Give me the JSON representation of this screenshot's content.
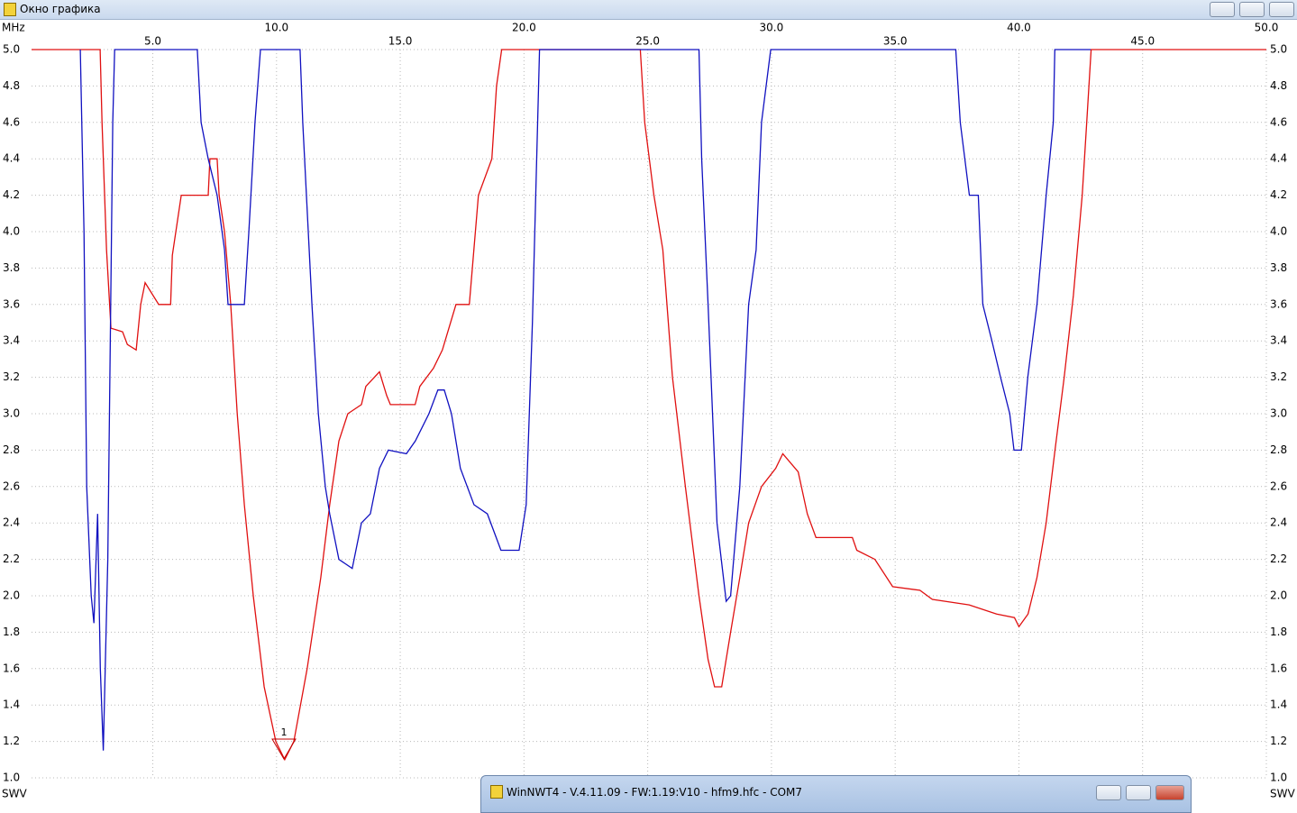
{
  "window": {
    "title": "Окно графика"
  },
  "chart_data": {
    "type": "line",
    "x_unit": "MHz",
    "y_unit": "SWV",
    "marker_label": "1",
    "xlim": [
      0.1,
      50
    ],
    "ylim": [
      1,
      5
    ],
    "grid": true,
    "xticks": [
      {
        "value": 5,
        "label": "5.0"
      },
      {
        "value": 10,
        "label": "10.0"
      },
      {
        "value": 15,
        "label": "15.0"
      },
      {
        "value": 20,
        "label": "20.0"
      },
      {
        "value": 25,
        "label": "25.0"
      },
      {
        "value": 30,
        "label": "30.0"
      },
      {
        "value": 35,
        "label": "35.0"
      },
      {
        "value": 40,
        "label": "40.0"
      },
      {
        "value": 45,
        "label": "45.0"
      },
      {
        "value": 50,
        "label": "50.0"
      }
    ],
    "yticks": [
      {
        "value": 1,
        "label": "1.0"
      },
      1.2,
      1.4,
      1.6,
      1.8,
      {
        "value": 2,
        "label": "2.0"
      },
      2.2,
      2.4,
      2.6,
      2.8,
      {
        "value": 3,
        "label": "3.0"
      },
      3.2,
      3.4,
      3.6,
      3.8,
      {
        "value": 4,
        "label": "4.0"
      },
      4.2,
      4.4,
      4.6,
      4.8,
      {
        "value": 5,
        "label": "5.0"
      }
    ],
    "series": [
      {
        "color": "#e01010",
        "x": [
          0.1,
          2.87,
          2.95,
          3.13,
          3.31,
          3.78,
          3.97,
          4.33,
          4.51,
          4.69,
          5.24,
          5.72,
          5.79,
          6.15,
          7.24,
          7.31,
          7.6,
          7.68,
          7.9,
          8.15,
          8.41,
          8.7,
          9.06,
          9.5,
          9.97,
          10.33,
          10.7,
          11.24,
          11.79,
          12.15,
          12.52,
          12.88,
          13.43,
          13.61,
          14.16,
          14.45,
          14.6,
          15.6,
          15.79,
          16.34,
          16.7,
          17.25,
          17.79,
          18.16,
          18.7,
          18.89,
          19.1,
          24.7,
          24.88,
          25.25,
          25.61,
          26.0,
          26.52,
          27.07,
          27.44,
          27.7,
          27.99,
          28.35,
          28.72,
          29.08,
          29.6,
          30.17,
          30.46,
          31.08,
          31.45,
          31.8,
          33.27,
          33.45,
          34.18,
          34.9,
          36.0,
          36.5,
          37.99,
          39.1,
          39.82,
          40.0,
          40.37,
          40.73,
          41.1,
          41.46,
          41.83,
          42.2,
          42.56,
          42.74,
          42.92,
          50
        ],
        "values": [
          5,
          5,
          4.6,
          3.9,
          3.47,
          3.45,
          3.38,
          3.35,
          3.6,
          3.72,
          3.6,
          3.6,
          3.87,
          4.2,
          4.2,
          4.4,
          4.4,
          4.2,
          4.0,
          3.6,
          3.0,
          2.5,
          2.0,
          1.5,
          1.2,
          1.1,
          1.2,
          1.6,
          2.1,
          2.5,
          2.85,
          3.0,
          3.05,
          3.15,
          3.23,
          3.1,
          3.05,
          3.05,
          3.15,
          3.25,
          3.35,
          3.6,
          3.6,
          4.2,
          4.4,
          4.8,
          5,
          5,
          4.6,
          4.2,
          3.9,
          3.2,
          2.6,
          2.0,
          1.65,
          1.5,
          1.5,
          1.8,
          2.1,
          2.4,
          2.6,
          2.7,
          2.78,
          2.68,
          2.45,
          2.32,
          2.32,
          2.25,
          2.2,
          2.05,
          2.03,
          1.98,
          1.95,
          1.9,
          1.88,
          1.83,
          1.9,
          2.1,
          2.4,
          2.8,
          3.2,
          3.65,
          4.2,
          4.6,
          5,
          5
        ]
      },
      {
        "color": "#1010c0",
        "x": [
          2.07,
          2.22,
          2.33,
          2.51,
          2.62,
          2.77,
          2.88,
          3.0,
          3.18,
          3.29,
          3.38,
          3.46,
          6.8,
          6.95,
          7.24,
          7.6,
          7.9,
          8.04,
          8.7,
          8.88,
          9.13,
          9.35,
          10.95,
          11.06,
          11.43,
          11.69,
          11.97,
          12.15,
          12.52,
          13.06,
          13.43,
          13.79,
          14.16,
          14.52,
          15.25,
          15.61,
          16.16,
          16.52,
          16.78,
          17.07,
          17.43,
          17.98,
          18.52,
          19.07,
          19.8,
          20.09,
          20.34,
          20.63,
          27.07,
          27.18,
          27.44,
          27.8,
          28.17,
          28.35,
          28.72,
          29.08,
          29.38,
          29.6,
          29.97,
          37.45,
          37.63,
          38.0,
          38.36,
          38.54,
          38.91,
          39.26,
          39.63,
          39.8,
          40.1,
          40.36,
          40.73,
          41.1,
          41.39,
          41.45,
          42.9
        ],
        "values": [
          5,
          4.0,
          2.6,
          2.0,
          1.85,
          2.45,
          1.6,
          1.15,
          2.2,
          3.5,
          4.6,
          5,
          5,
          4.6,
          4.4,
          4.2,
          3.9,
          3.6,
          3.6,
          4.0,
          4.6,
          5,
          5,
          4.6,
          3.6,
          3.0,
          2.6,
          2.45,
          2.2,
          2.15,
          2.4,
          2.45,
          2.7,
          2.8,
          2.78,
          2.85,
          3.0,
          3.13,
          3.13,
          3.0,
          2.7,
          2.5,
          2.45,
          2.25,
          2.25,
          2.5,
          3.5,
          5,
          5,
          4.4,
          3.6,
          2.4,
          1.97,
          2.0,
          2.6,
          3.6,
          3.9,
          4.6,
          5,
          5,
          4.6,
          4.2,
          4.2,
          3.6,
          3.4,
          3.2,
          3.0,
          2.8,
          2.8,
          3.2,
          3.6,
          4.2,
          4.6,
          5,
          5
        ]
      }
    ]
  },
  "taskbar_window": {
    "title": "WinNWT4 - V.4.11.09 - FW:1.19:V10 - hfm9.hfc - COM7"
  }
}
